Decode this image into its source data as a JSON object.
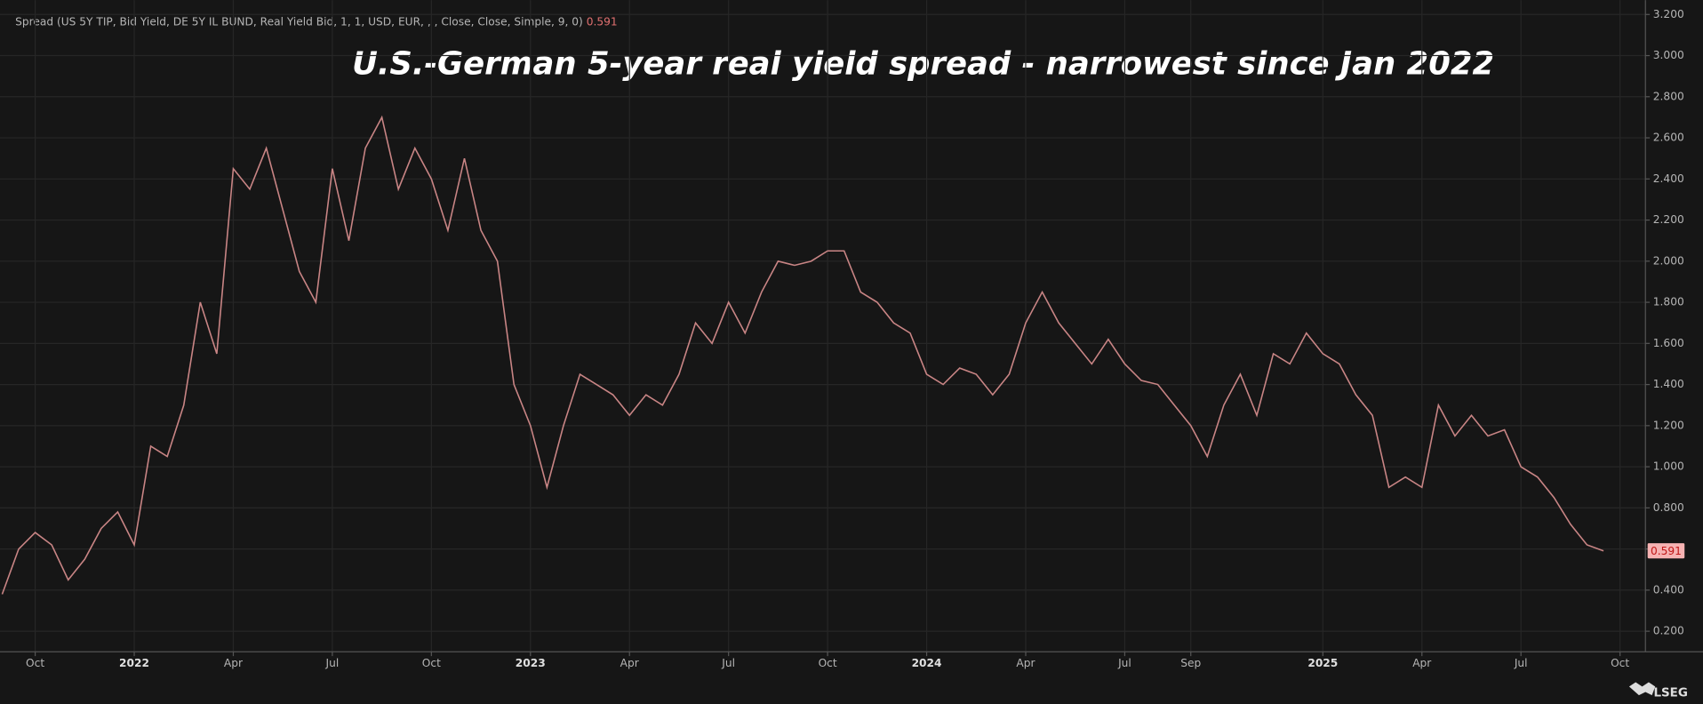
{
  "chart_data": {
    "type": "line",
    "title": "U.S.-German 5-year real yield spread - narrowest since Jan 2022",
    "subtitle": "Spread (US 5Y TIP, Bid Yield, DE 5Y IL BUND, Real Yield Bid, 1, 1, USD, EUR, , , Close, Close, Simple, 9, 0)",
    "source": "LSEG",
    "categories": [
      null,
      null,
      "Oct",
      null,
      null,
      null,
      null,
      null,
      "2022",
      null,
      null,
      null,
      null,
      null,
      "Apr",
      null,
      null,
      null,
      null,
      null,
      "Jul",
      null,
      null,
      null,
      null,
      null,
      "Oct",
      null,
      null,
      null,
      null,
      null,
      "2023",
      null,
      null,
      null,
      null,
      null,
      "Apr",
      null,
      null,
      null,
      null,
      null,
      "Jul",
      null,
      null,
      null,
      null,
      null,
      "Oct",
      null,
      null,
      null,
      null,
      null,
      "2024",
      null,
      null,
      null,
      null,
      null,
      "Apr",
      null,
      null,
      null,
      null,
      null,
      "Jul",
      null,
      null,
      null,
      "Sep",
      null,
      null,
      null,
      null,
      null,
      null,
      null,
      "2025",
      null,
      null,
      null,
      null,
      null,
      "Apr",
      null,
      null,
      null,
      null,
      null,
      "Jul",
      null,
      null,
      null,
      null,
      null,
      "Oct"
    ],
    "series": [
      {
        "name": "Spread",
        "color": "#c98585",
        "values": [
          0.38,
          0.6,
          0.68,
          0.62,
          0.45,
          0.55,
          0.7,
          0.78,
          0.62,
          1.1,
          1.05,
          1.3,
          1.8,
          1.55,
          2.45,
          2.35,
          2.55,
          2.25,
          1.95,
          1.8,
          2.45,
          2.1,
          2.55,
          2.7,
          2.35,
          2.55,
          2.4,
          2.15,
          2.5,
          2.15,
          2.0,
          1.4,
          1.2,
          0.9,
          1.2,
          1.45,
          1.4,
          1.35,
          1.25,
          1.35,
          1.3,
          1.45,
          1.7,
          1.6,
          1.8,
          1.65,
          1.85,
          2.0,
          1.98,
          2.0,
          2.05,
          2.05,
          1.85,
          1.8,
          1.7,
          1.65,
          1.45,
          1.4,
          1.48,
          1.45,
          1.35,
          1.45,
          1.7,
          1.85,
          1.7,
          1.6,
          1.5,
          1.62,
          1.5,
          1.42,
          1.4,
          1.3,
          1.2,
          1.05,
          1.3,
          1.45,
          1.25,
          1.55,
          1.5,
          1.65,
          1.55,
          1.5,
          1.35,
          1.25,
          0.9,
          0.95,
          0.9,
          1.3,
          1.15,
          1.25,
          1.15,
          1.18,
          1.0,
          0.95,
          0.85,
          0.72,
          0.62,
          0.591,
          null
        ]
      }
    ],
    "ylim": [
      0.1,
      3.27
    ],
    "yticks": [
      {
        "value": 0.2,
        "label": "0.200"
      },
      {
        "value": 0.4,
        "label": "0.400"
      },
      {
        "value": 0.6,
        "label": "0.600"
      },
      {
        "value": 0.8,
        "label": "0.800"
      },
      {
        "value": 1.0,
        "label": "1.000"
      },
      {
        "value": 1.2,
        "label": "1.200"
      },
      {
        "value": 1.4,
        "label": "1.400"
      },
      {
        "value": 1.6,
        "label": "1.600"
      },
      {
        "value": 1.8,
        "label": "1.800"
      },
      {
        "value": 2.0,
        "label": "2.000"
      },
      {
        "value": 2.2,
        "label": "2.200"
      },
      {
        "value": 2.4,
        "label": "2.400"
      },
      {
        "value": 2.6,
        "label": "2.600"
      },
      {
        "value": 2.8,
        "label": "2.800"
      },
      {
        "value": 3.0,
        "label": "3.000"
      },
      {
        "value": 3.2,
        "label": "3.200"
      }
    ],
    "grid": true
  }
}
